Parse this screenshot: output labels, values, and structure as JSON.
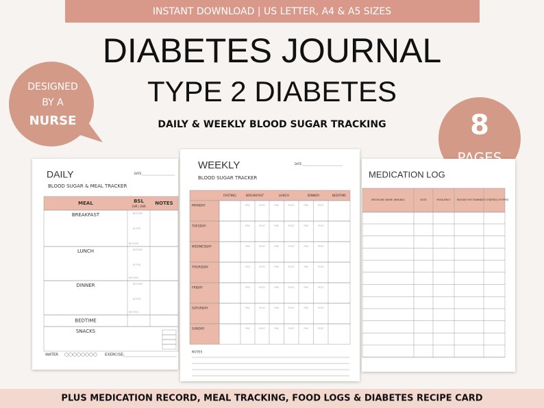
{
  "banner": "INSTANT DOWNLOAD |  US LETTER, A4 & A5 SIZES",
  "title": "DIABETES JOURNAL",
  "subtitle": "TYPE 2 DIABETES",
  "tagline": "DAILY & WEEKLY BLOOD SUGAR TRACKING",
  "badge_nurse": [
    "DESIGNED",
    "BY A",
    "NURSE"
  ],
  "badge_pages": {
    "count": "8",
    "label": "PAGES"
  },
  "daily": {
    "title": "DAILY",
    "date": "DATE",
    "subtitle": "BLOOD SUGAR & MEAL TRACKER",
    "headers": [
      "MEAL",
      "BSL",
      "NOTES"
    ],
    "bsl_note": "1HR | 2HR",
    "meals": [
      "BREAKFAST",
      "LUNCH",
      "DINNER",
      "BEDTIME",
      "SNACKS"
    ],
    "bsl_labels": [
      "BEFORE",
      "AFTER"
    ],
    "water": "WATER",
    "exercise": "EXERCISE:"
  },
  "weekly": {
    "title": "WEEKLY",
    "date": "DATE",
    "subtitle": "BLOOD SUGAR TRACKER",
    "headers": [
      "FASTING",
      "BREAKFAST",
      "LUNCH",
      "DINNER",
      "BEDTIME"
    ],
    "days": [
      "MONDAY",
      "TUESDAY",
      "WEDNESDAY",
      "THURSDAY",
      "FRIDAY",
      "SATURDAY",
      "SUNDAY"
    ],
    "prepost": [
      "PRE",
      "POST"
    ],
    "notes": "NOTES"
  },
  "medication": {
    "title": "MEDICATION LOG",
    "headers": [
      "MEDICINE NAME (BRAND)",
      "DOSE",
      "FREQUENCY",
      "REASON FOR TAKING",
      "DATE STARTED/ STOPPED"
    ]
  },
  "footer": "PLUS MEDICATION RECORD, MEAL TRACKING, FOOD LOGS & DIABETES RECIPE CARD"
}
